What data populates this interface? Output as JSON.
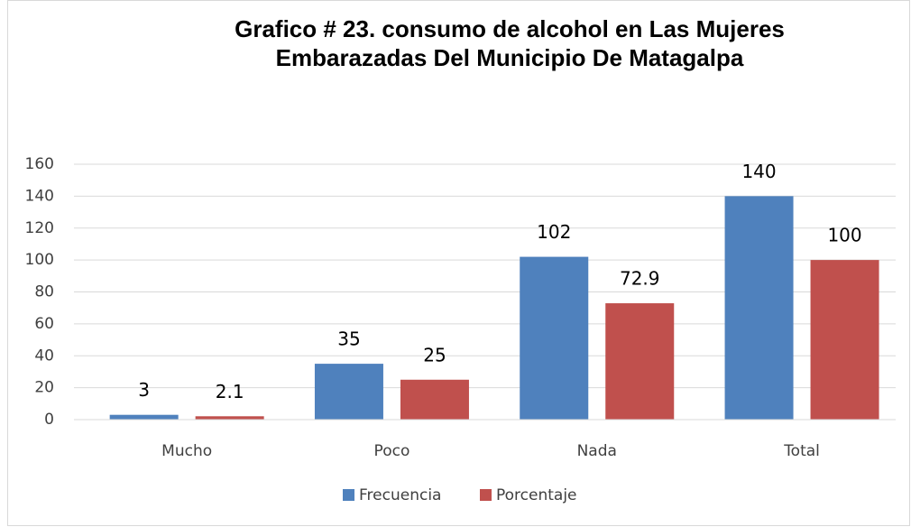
{
  "chart_data": {
    "type": "bar",
    "title": "Grafico # 23. consumo de alcohol en Las Mujeres Embarazadas Del Municipio De Matagalpa",
    "categories": [
      "Mucho",
      "Poco",
      "Nada",
      "Total"
    ],
    "series": [
      {
        "name": "Frecuencia",
        "color": "#4f81bd",
        "values": [
          3,
          35,
          102,
          140
        ]
      },
      {
        "name": "Porcentaje",
        "color": "#c0504d",
        "values": [
          2.1,
          25,
          72.9,
          100
        ]
      }
    ],
    "ylim": [
      0,
      160
    ],
    "yticks": [
      0,
      20,
      40,
      60,
      80,
      100,
      120,
      140,
      160
    ],
    "grid": true,
    "legend": "bottom"
  }
}
